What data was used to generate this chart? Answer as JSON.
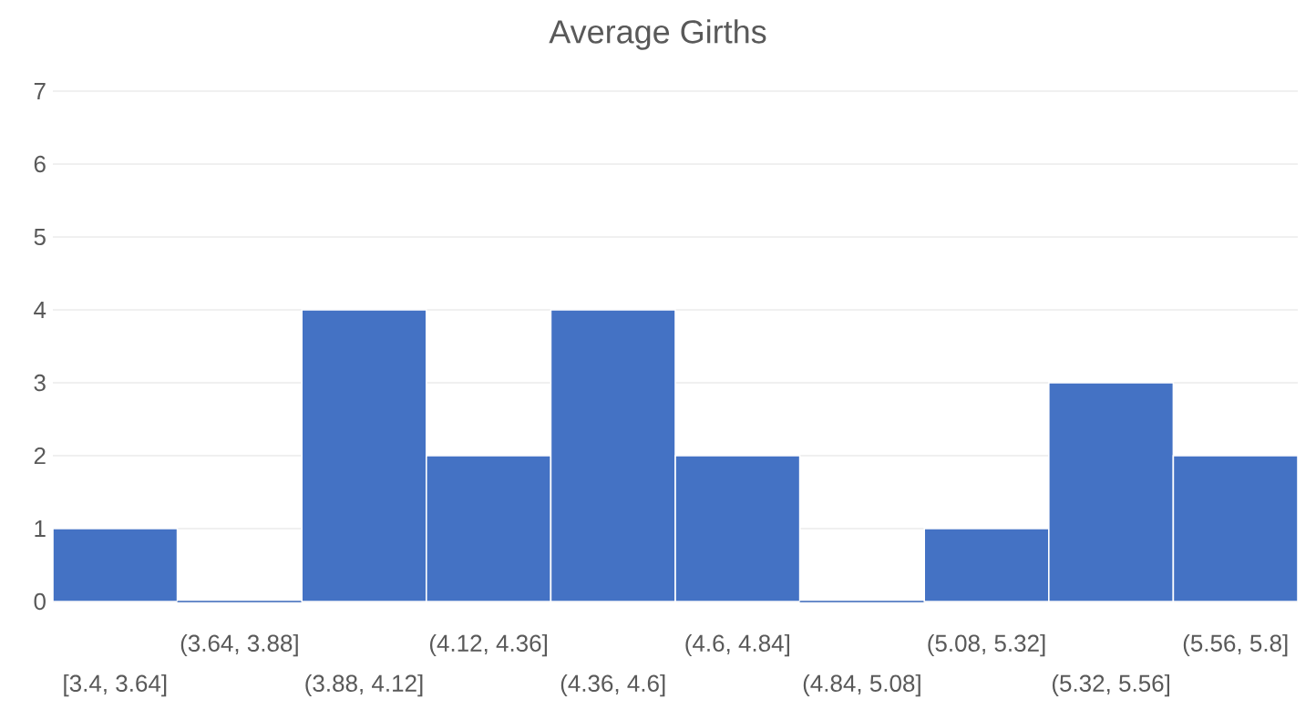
{
  "chart_data": {
    "type": "bar",
    "title": "Average Girths",
    "categories": [
      "[3.4, 3.64]",
      "(3.64, 3.88]",
      "(3.88, 4.12]",
      "(4.12, 4.36]",
      "(4.36, 4.6]",
      "(4.6, 4.84]",
      "(4.84, 5.08]",
      "(5.08, 5.32]",
      "(5.32, 5.56]",
      "(5.56, 5.8]"
    ],
    "values": [
      1,
      0,
      4,
      2,
      4,
      2,
      0,
      1,
      3,
      2
    ],
    "color": "#4472c4",
    "ylim": [
      0,
      7
    ],
    "yticks": [
      0,
      1,
      2,
      3,
      4,
      5,
      6,
      7
    ],
    "grid": "y"
  }
}
